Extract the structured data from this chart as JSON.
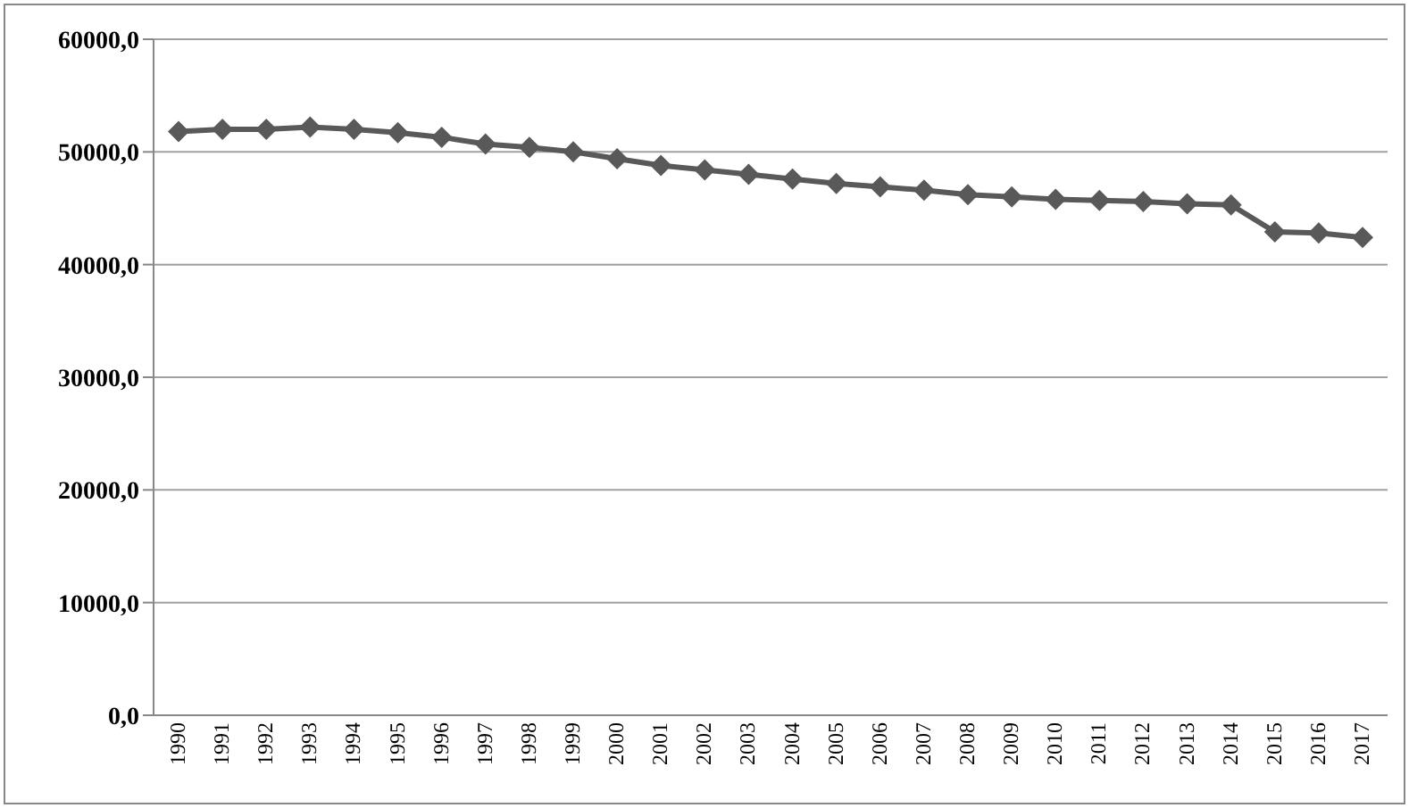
{
  "chart_data": {
    "type": "line",
    "categories": [
      "1990",
      "1991",
      "1992",
      "1993",
      "1994",
      "1995",
      "1996",
      "1997",
      "1998",
      "1999",
      "2000",
      "2001",
      "2002",
      "2003",
      "2004",
      "2005",
      "2006",
      "2007",
      "2008",
      "2009",
      "2010",
      "2011",
      "2012",
      "2013",
      "2014",
      "2015",
      "2016",
      "2017"
    ],
    "series": [
      {
        "color": "#595959",
        "values": [
          51800,
          52000,
          52000,
          52200,
          52000,
          51700,
          51300,
          50700,
          50400,
          50000,
          49400,
          48800,
          48400,
          48000,
          47600,
          47200,
          46900,
          46600,
          46200,
          46000,
          45800,
          45700,
          45600,
          45400,
          45300,
          42900,
          42800,
          42400
        ]
      }
    ],
    "ylim": [
      0,
      60000
    ],
    "yticks": [
      {
        "value": 0,
        "label": "0,0"
      },
      {
        "value": 10000,
        "label": "10000,0"
      },
      {
        "value": 20000,
        "label": "20000,0"
      },
      {
        "value": 30000,
        "label": "30000,0"
      },
      {
        "value": 40000,
        "label": "40000,0"
      },
      {
        "value": 50000,
        "label": "50000,0"
      },
      {
        "value": 60000,
        "label": "60000,0"
      }
    ],
    "grid": "y",
    "marker": "diamond",
    "line_style": "solid",
    "legend": false
  }
}
